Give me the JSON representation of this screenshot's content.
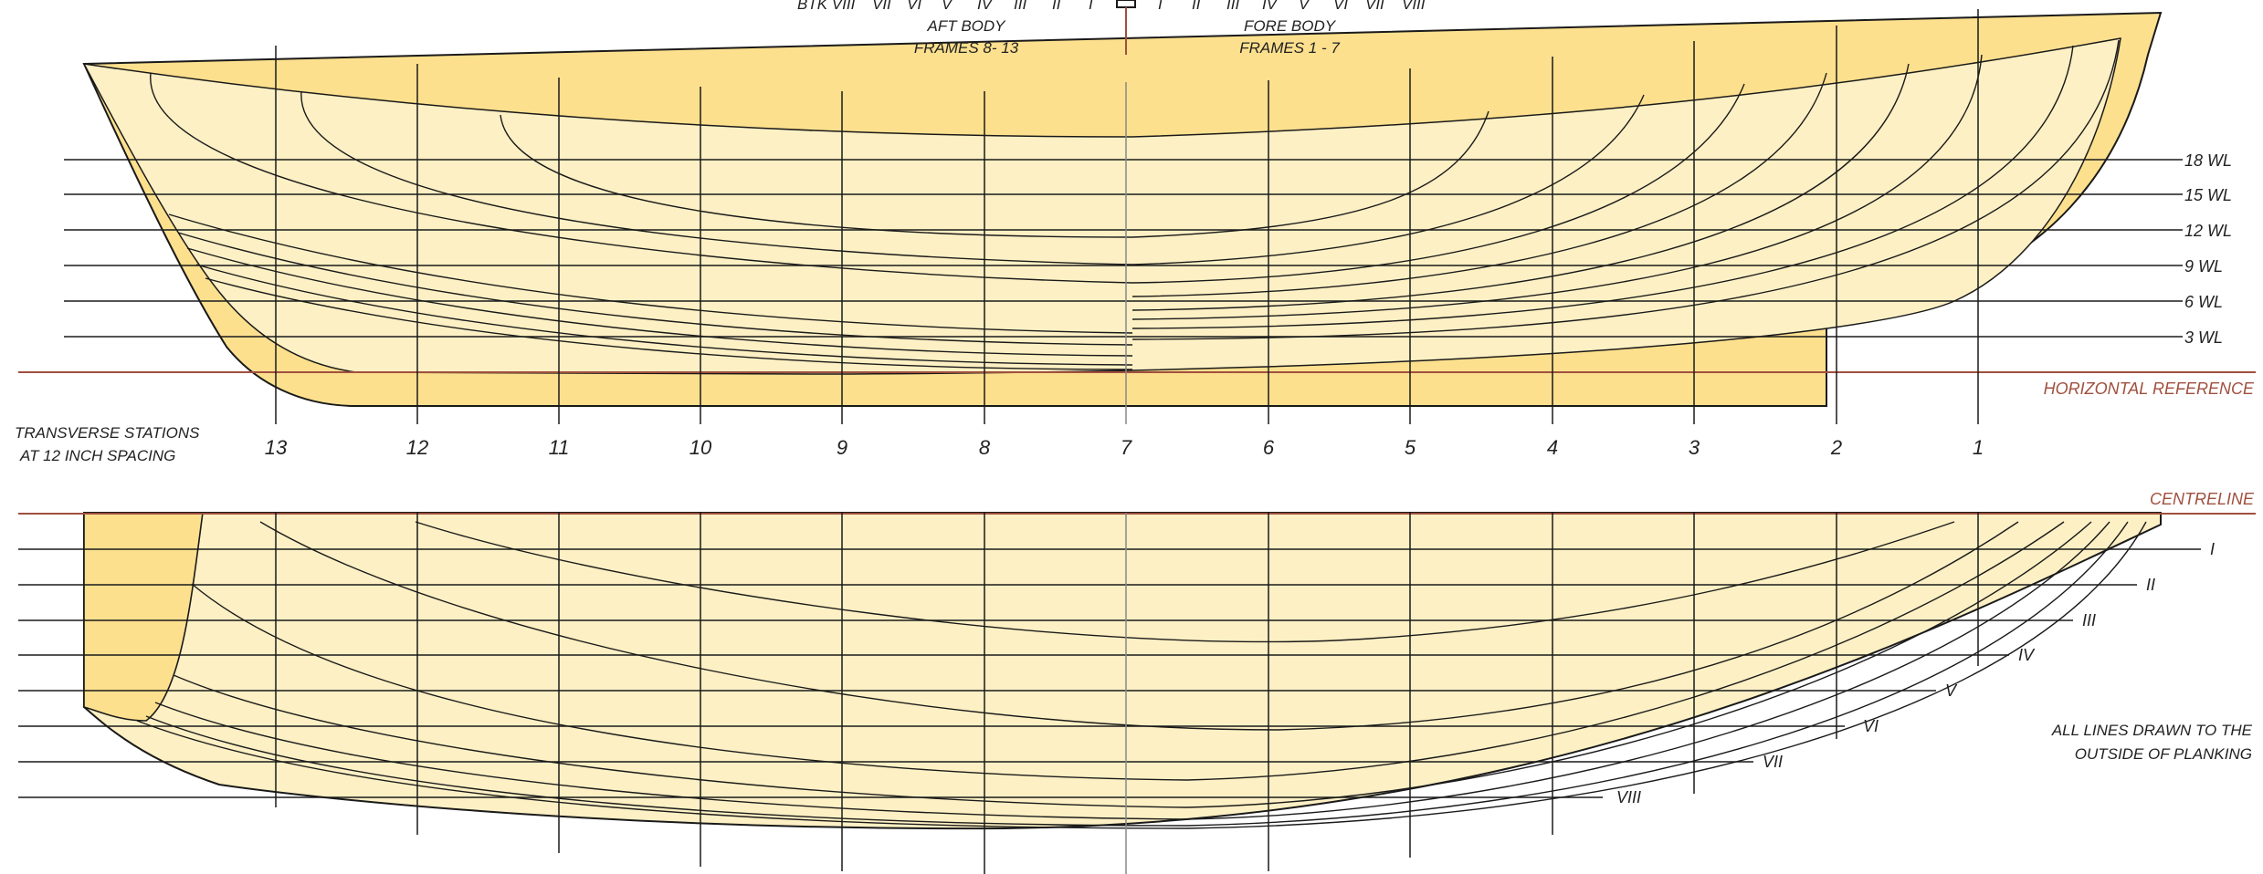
{
  "labels": {
    "header_buttocks_prefix": "BTK VIII",
    "aft_body_line1": "AFT BODY",
    "aft_body_line2": "FRAMES 8- 13",
    "fore_body_line1": "FORE BODY",
    "fore_body_line2": "FRAMES 1 - 7",
    "transverse_line1": "TRANSVERSE STATIONS",
    "transverse_line2": "AT  12 INCH SPACING",
    "horizontal_reference": "HORIZONTAL REFERENCE",
    "centreline": "CENTRELINE",
    "note_line1": "ALL LINES DRAWN TO THE",
    "note_line2": "OUTSIDE OF PLANKING"
  },
  "header_aft_numerals": [
    "VII",
    "VI",
    "V",
    "IV",
    "III",
    "II",
    "I"
  ],
  "header_fore_numerals": [
    "I",
    "II",
    "III",
    "IV",
    "V",
    "VI",
    "VII",
    "VIII"
  ],
  "waterlines": [
    "18 WL",
    "15 WL",
    "12 WL",
    "9 WL",
    "6 WL",
    "3 WL"
  ],
  "stations": [
    "13",
    "12",
    "11",
    "10",
    "9",
    "8",
    "7",
    "6",
    "5",
    "4",
    "3",
    "2",
    "1"
  ],
  "buttocks": [
    "I",
    "II",
    "III",
    "IV",
    "V",
    "VI",
    "VII",
    "VIII"
  ],
  "colors": {
    "hull_fill": "#fdf0c4",
    "keel_fill": "#fde08e",
    "line": "#1a1a1a",
    "reference": "#a0503e"
  }
}
